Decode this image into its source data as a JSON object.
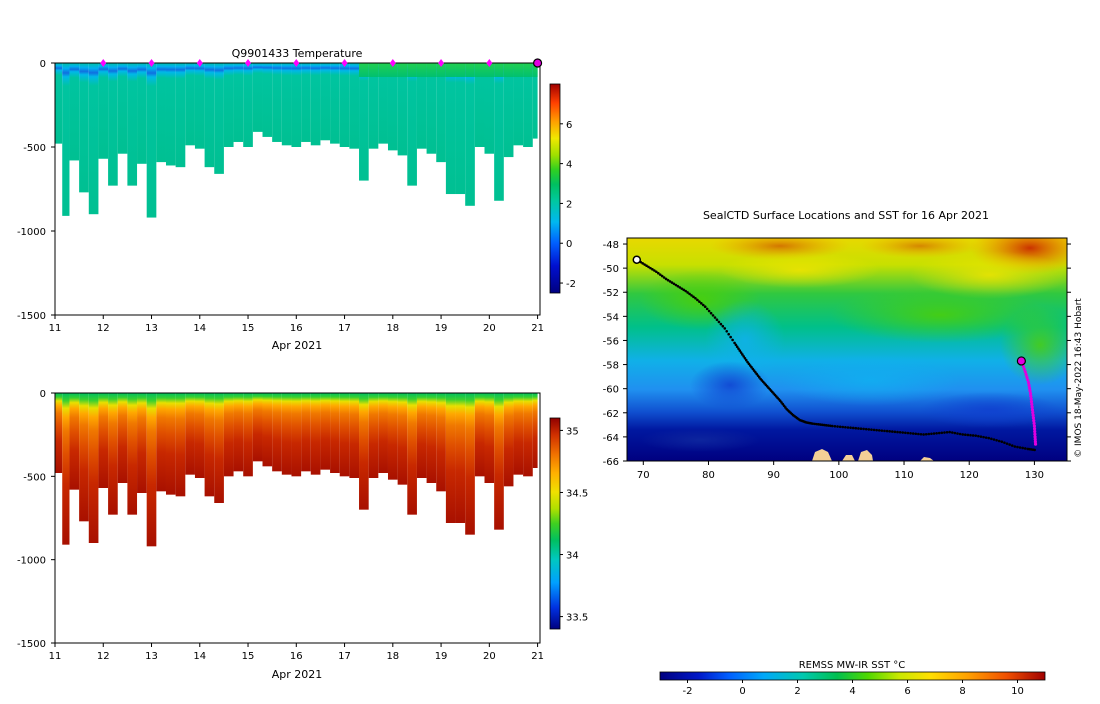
{
  "colors": {
    "text": "#000000",
    "axis": "#000000",
    "track": "#000000",
    "recent_track": "#e000e0",
    "profile_marker": "#ff00ff",
    "land": "#f3cf96"
  },
  "chart_data": [
    {
      "id": "temperature_section",
      "type": "heatmap",
      "title": "Q9901433  Temperature",
      "xlabel": "Apr 2021",
      "ylabel": "",
      "x_ticks": [
        "11",
        "12",
        "13",
        "14",
        "15",
        "16",
        "17",
        "18",
        "19",
        "20",
        "21"
      ],
      "y_ticks": [
        "0",
        "-500",
        "-1000",
        "-1500"
      ],
      "xlim": [
        11,
        21.05
      ],
      "ylim": [
        -1500,
        0
      ],
      "colorbar": {
        "ticks": [
          "6",
          "4",
          "2",
          "0",
          "-2"
        ],
        "range": [
          -2.5,
          8
        ]
      },
      "profile_markers_day": [
        12,
        13,
        14,
        15,
        16,
        17,
        18,
        19,
        20
      ],
      "last_position_day": 21,
      "depth_max_per_day": {
        "day": [
          11,
          11.15,
          11.3,
          11.5,
          11.7,
          11.9,
          12.1,
          12.3,
          12.5,
          12.7,
          12.9,
          13.1,
          13.3,
          13.5,
          13.7,
          13.9,
          14.1,
          14.3,
          14.5,
          14.7,
          14.9,
          15.1,
          15.3,
          15.5,
          15.7,
          15.9,
          16.1,
          16.3,
          16.5,
          16.7,
          16.9,
          17.1,
          17.3,
          17.5,
          17.7,
          17.9,
          18.1,
          18.3,
          18.5,
          18.7,
          18.9,
          19.1,
          19.3,
          19.5,
          19.7,
          19.9,
          20.1,
          20.3,
          20.5,
          20.7,
          20.9
        ],
        "depth": [
          -480,
          -910,
          -580,
          -770,
          -900,
          -570,
          -730,
          -540,
          -730,
          -600,
          -920,
          -590,
          -610,
          -620,
          -490,
          -510,
          -620,
          -660,
          -500,
          -470,
          -500,
          -410,
          -440,
          -470,
          -490,
          -500,
          -470,
          -490,
          -460,
          -480,
          -500,
          -510,
          -700,
          -510,
          -480,
          -520,
          -550,
          -730,
          -510,
          -540,
          -590,
          -780,
          -780,
          -850,
          -500,
          -540,
          -820,
          -560,
          -490,
          -500,
          -450
        ]
      }
    },
    {
      "id": "salinity_section",
      "type": "heatmap",
      "title": "",
      "xlabel": "Apr 2021",
      "ylabel": "",
      "x_ticks": [
        "11",
        "12",
        "13",
        "14",
        "15",
        "16",
        "17",
        "18",
        "19",
        "20",
        "21"
      ],
      "y_ticks": [
        "0",
        "-500",
        "-1000",
        "-1500"
      ],
      "xlim": [
        11,
        21.05
      ],
      "ylim": [
        -1500,
        0
      ],
      "colorbar": {
        "ticks": [
          "35",
          "34.5",
          "34",
          "33.5"
        ],
        "range": [
          33.4,
          35.1
        ]
      }
    },
    {
      "id": "sst_map",
      "type": "heatmap",
      "title": "SealCTD Surface Locations and SST for 16 Apr 2021",
      "x_ticks": [
        "70",
        "80",
        "90",
        "100",
        "110",
        "120",
        "130"
      ],
      "y_ticks": [
        "-48",
        "-50",
        "-52",
        "-54",
        "-56",
        "-58",
        "-60",
        "-62",
        "-64",
        "-66"
      ],
      "xlim": [
        67.5,
        135
      ],
      "ylim": [
        -66,
        -47.5
      ],
      "credit": "© IMOS 18-May-2022 16:43 Hobart",
      "colorbar": {
        "label": "REMSS MW-IR SST °C",
        "ticks": [
          "-2",
          "0",
          "2",
          "4",
          "6",
          "8",
          "10"
        ],
        "range": [
          -3,
          11
        ]
      },
      "track": {
        "lon": [
          69.0,
          70.5,
          72.0,
          73.5,
          75.0,
          76.5,
          78.0,
          79.5,
          81.0,
          82.5,
          84.0,
          85.0,
          86.0,
          87.0,
          88.0,
          89.0,
          90.0,
          91.0,
          92.0,
          93.0,
          94.0,
          95.0,
          96.0,
          97.5,
          99.0,
          101.0,
          103.0,
          105.0,
          107.0,
          109.0,
          111.0,
          113.0,
          115.0,
          117.0,
          119.0,
          121.0,
          123.0,
          125.0,
          127.0,
          129.0,
          130.3
        ],
        "lat": [
          -49.3,
          -49.8,
          -50.3,
          -50.9,
          -51.4,
          -51.9,
          -52.5,
          -53.2,
          -54.1,
          -55.0,
          -56.2,
          -57.0,
          -57.8,
          -58.5,
          -59.2,
          -59.8,
          -60.4,
          -61.0,
          -61.7,
          -62.2,
          -62.6,
          -62.8,
          -62.9,
          -63.0,
          -63.1,
          -63.2,
          -63.3,
          -63.4,
          -63.5,
          -63.6,
          -63.7,
          -63.8,
          -63.7,
          -63.6,
          -63.8,
          -63.9,
          -64.1,
          -64.4,
          -64.8,
          -65.0,
          -65.1
        ]
      },
      "recent_track": {
        "lon": [
          128.0,
          128.6,
          129.1,
          129.4,
          129.6,
          129.8,
          130.0,
          130.1,
          130.2
        ],
        "lat": [
          -57.7,
          -58.6,
          -59.5,
          -60.4,
          -61.3,
          -62.2,
          -63.1,
          -64.0,
          -64.8
        ]
      },
      "current_position": {
        "lon": 128.0,
        "lat": -57.7
      },
      "start_position": {
        "lon": 69.0,
        "lat": -49.3
      }
    }
  ]
}
